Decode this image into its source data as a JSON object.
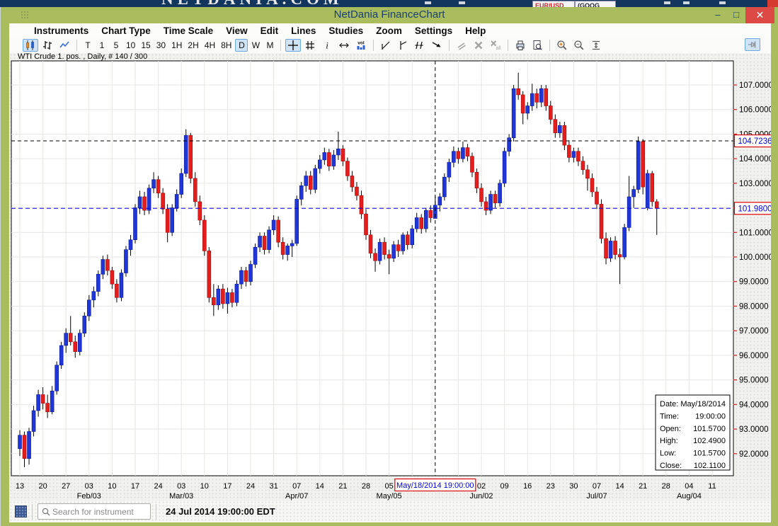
{
  "background_page": {
    "logo_text": "NETDANIA.COM",
    "ticker_left": "EUR/USD",
    "ticker_right": "(GOOG"
  },
  "window": {
    "title": "NetDania FinanceChart",
    "minimize_glyph": "–",
    "maximize_glyph": "□",
    "close_glyph": "✕"
  },
  "menu": {
    "items": [
      "Instruments",
      "Chart Type",
      "Time Scale",
      "View",
      "Edit",
      "Lines",
      "Studies",
      "Zoom",
      "Settings",
      "Help"
    ]
  },
  "toolbar": {
    "groups": [
      {
        "items": [
          {
            "name": "candlestick-chart-button",
            "icon": "candlestick",
            "selected": true
          },
          {
            "name": "ohlc-bars-button",
            "icon": "ohlc"
          },
          {
            "name": "line-chart-button",
            "icon": "linechart"
          }
        ]
      },
      {
        "items": [
          {
            "name": "timescale-tick",
            "label": "T"
          },
          {
            "name": "timescale-1min",
            "label": "1"
          },
          {
            "name": "timescale-5min",
            "label": "5"
          },
          {
            "name": "timescale-10min",
            "label": "10"
          },
          {
            "name": "timescale-15min",
            "label": "15"
          },
          {
            "name": "timescale-30min",
            "label": "30"
          },
          {
            "name": "timescale-1h",
            "label": "1H"
          },
          {
            "name": "timescale-2h",
            "label": "2H"
          },
          {
            "name": "timescale-4h",
            "label": "4H"
          },
          {
            "name": "timescale-8h",
            "label": "8H"
          },
          {
            "name": "timescale-daily",
            "label": "D",
            "selected": true
          },
          {
            "name": "timescale-weekly",
            "label": "W"
          },
          {
            "name": "timescale-monthly",
            "label": "M"
          }
        ]
      },
      {
        "items": [
          {
            "name": "crosshair-button",
            "icon": "crosshair",
            "selected": true
          },
          {
            "name": "grid-button",
            "icon": "grid"
          },
          {
            "name": "info-button",
            "icon": "info"
          },
          {
            "name": "horizontal-scale-button",
            "icon": "resizeh"
          },
          {
            "name": "volume-button",
            "icon": "volume"
          }
        ]
      },
      {
        "items": [
          {
            "name": "trend-line-button",
            "icon": "trendline"
          },
          {
            "name": "vertical-line-button",
            "icon": "trendvline"
          },
          {
            "name": "parallel-lines-button",
            "icon": "trendparallel"
          },
          {
            "name": "arrow-tool-button",
            "icon": "trendarrow"
          }
        ]
      },
      {
        "items": [
          {
            "name": "move-parallel-button",
            "icon": "parallelgray",
            "disabled": true
          },
          {
            "name": "delete-line-button",
            "icon": "deletex",
            "disabled": true
          },
          {
            "name": "delete-all-lines-button",
            "icon": "deleteall",
            "disabled": true
          }
        ]
      },
      {
        "items": [
          {
            "name": "print-button",
            "icon": "print"
          },
          {
            "name": "print-preview-button",
            "icon": "preview"
          }
        ]
      },
      {
        "items": [
          {
            "name": "zoom-in-button",
            "icon": "zoomin"
          },
          {
            "name": "zoom-out-button",
            "icon": "zoomout"
          },
          {
            "name": "fit-vertical-button",
            "icon": "fitv"
          }
        ]
      }
    ],
    "pin": {
      "name": "pin-panel-button",
      "icon": "pin",
      "selected": true
    }
  },
  "chart": {
    "label": "WTI Crude 1. pos. , Daily, # 140 / 300",
    "colors": {
      "up": "#2136d9",
      "up_border": "#0a1a8c",
      "down": "#e51d1d",
      "down_border": "#9b0e0e",
      "wick": "#000000",
      "grid": "#e6e6e3",
      "plot_border": "#000000",
      "crosshair": "#000000",
      "last_price_line": "#0000dd",
      "axis_tick": "#cc2222",
      "axis_text": "#000000",
      "marker_text": "#0000cc",
      "marker_border": "#dd0000",
      "marker_bg": "#ffffff"
    }
  },
  "chart_data": {
    "type": "candlestick",
    "instrument": "WTI Crude 1. pos.",
    "interval": "Daily",
    "bars_info": "# 140 / 300",
    "y_ticks": [
      92,
      93,
      94,
      95,
      96,
      97,
      98,
      99,
      100,
      101,
      102,
      103,
      104,
      105,
      106,
      107
    ],
    "y_tick_format": [
      "92.0000",
      "93.0000",
      "94.0000",
      "95.0000",
      "96.0000",
      "97.0000",
      "98.0000",
      "99.0000",
      "100.0000",
      "101.0000",
      "102.0000",
      "103.0000",
      "104.0000",
      "105.0000",
      "106.0000",
      "107.0000"
    ],
    "y_range": [
      91.1,
      107.98
    ],
    "bar_slots": 155,
    "week_labels": [
      {
        "bar": 0,
        "label": "13"
      },
      {
        "bar": 5,
        "label": "20"
      },
      {
        "bar": 10,
        "label": "27"
      },
      {
        "bar": 15,
        "label": "03"
      },
      {
        "bar": 20,
        "label": "10"
      },
      {
        "bar": 25,
        "label": "17"
      },
      {
        "bar": 30,
        "label": "24"
      },
      {
        "bar": 35,
        "label": "03"
      },
      {
        "bar": 40,
        "label": "10"
      },
      {
        "bar": 45,
        "label": "17"
      },
      {
        "bar": 50,
        "label": "24"
      },
      {
        "bar": 55,
        "label": "31"
      },
      {
        "bar": 60,
        "label": "07"
      },
      {
        "bar": 65,
        "label": "14"
      },
      {
        "bar": 70,
        "label": "21"
      },
      {
        "bar": 75,
        "label": "28"
      },
      {
        "bar": 80,
        "label": "05"
      },
      {
        "bar": 100,
        "label": "02"
      },
      {
        "bar": 105,
        "label": "09"
      },
      {
        "bar": 110,
        "label": "16"
      },
      {
        "bar": 115,
        "label": "23"
      },
      {
        "bar": 120,
        "label": "30"
      },
      {
        "bar": 125,
        "label": "07"
      },
      {
        "bar": 130,
        "label": "14"
      },
      {
        "bar": 135,
        "label": "21"
      },
      {
        "bar": 140,
        "label": "28"
      },
      {
        "bar": 145,
        "label": "04"
      },
      {
        "bar": 150,
        "label": "11"
      }
    ],
    "month_labels": [
      {
        "bar": 15,
        "label": "Feb/03"
      },
      {
        "bar": 35,
        "label": "Mar/03"
      },
      {
        "bar": 60,
        "label": "Apr/07"
      },
      {
        "bar": 80,
        "label": "May/05"
      },
      {
        "bar": 100,
        "label": "Jun/02"
      },
      {
        "bar": 125,
        "label": "Jul/07"
      },
      {
        "bar": 145,
        "label": "Aug/04"
      }
    ],
    "crosshair": {
      "bar": 90,
      "price": 104.7236,
      "price_label": "104.7236",
      "time_label": "May/18/2014 19:00:00"
    },
    "last_price": 101.98,
    "last_price_label": "101.9800",
    "tooltip": {
      "rows": [
        {
          "key": "Date:",
          "value": "May/18/2014"
        },
        {
          "key": "Time:",
          "value": "19:00:00"
        },
        {
          "key": "Open:",
          "value": "101.5700"
        },
        {
          "key": "High:",
          "value": "102.4900"
        },
        {
          "key": "Low:",
          "value": "101.5700"
        },
        {
          "key": "Close:",
          "value": "102.1100"
        }
      ]
    },
    "candles": [
      [
        92.2,
        92.95,
        91.9,
        92.75
      ],
      [
        92.75,
        92.9,
        91.45,
        91.8
      ],
      [
        91.8,
        93.05,
        91.55,
        92.9
      ],
      [
        92.9,
        93.95,
        92.7,
        93.75
      ],
      [
        93.75,
        94.6,
        93.5,
        94.4
      ],
      [
        94.4,
        94.7,
        93.8,
        94.05
      ],
      [
        94.05,
        94.4,
        93.45,
        93.7
      ],
      [
        93.7,
        94.75,
        93.6,
        94.55
      ],
      [
        94.55,
        95.75,
        94.4,
        95.6
      ],
      [
        95.6,
        96.55,
        95.45,
        96.4
      ],
      [
        96.4,
        97.1,
        96.1,
        96.9
      ],
      [
        96.9,
        97.6,
        96.4,
        96.55
      ],
      [
        96.55,
        96.8,
        95.9,
        96.15
      ],
      [
        96.15,
        97.05,
        96.0,
        96.9
      ],
      [
        96.9,
        97.75,
        96.75,
        97.6
      ],
      [
        97.6,
        98.45,
        97.4,
        98.25
      ],
      [
        98.25,
        98.8,
        97.95,
        98.6
      ],
      [
        98.6,
        99.45,
        98.4,
        99.3
      ],
      [
        99.3,
        100.05,
        99.1,
        99.9
      ],
      [
        99.9,
        100.1,
        99.25,
        99.45
      ],
      [
        99.45,
        99.6,
        98.7,
        98.9
      ],
      [
        98.9,
        99.1,
        98.15,
        98.35
      ],
      [
        98.35,
        99.5,
        98.2,
        99.35
      ],
      [
        99.35,
        100.45,
        99.2,
        100.3
      ],
      [
        100.3,
        100.9,
        100.05,
        100.7
      ],
      [
        100.7,
        102.15,
        100.55,
        102.0
      ],
      [
        102.0,
        102.7,
        101.75,
        102.45
      ],
      [
        102.45,
        102.65,
        101.7,
        101.9
      ],
      [
        101.9,
        102.95,
        101.75,
        102.8
      ],
      [
        102.8,
        103.45,
        102.6,
        103.15
      ],
      [
        103.15,
        103.3,
        102.4,
        102.6
      ],
      [
        102.6,
        102.8,
        101.75,
        101.95
      ],
      [
        101.95,
        102.15,
        100.6,
        101.0
      ],
      [
        101.0,
        102.15,
        100.85,
        102.0
      ],
      [
        102.0,
        102.75,
        101.85,
        102.55
      ],
      [
        102.55,
        103.6,
        102.4,
        103.4
      ],
      [
        103.4,
        105.2,
        103.25,
        104.95
      ],
      [
        104.95,
        105.05,
        103.0,
        103.2
      ],
      [
        103.2,
        103.45,
        102.05,
        102.25
      ],
      [
        102.25,
        102.5,
        101.3,
        101.5
      ],
      [
        101.5,
        101.7,
        100.05,
        100.25
      ],
      [
        100.25,
        100.4,
        98.15,
        98.35
      ],
      [
        98.35,
        98.9,
        97.6,
        98.05
      ],
      [
        98.05,
        98.85,
        97.85,
        98.7
      ],
      [
        98.7,
        98.9,
        97.9,
        98.1
      ],
      [
        98.1,
        98.75,
        97.7,
        98.55
      ],
      [
        98.55,
        98.7,
        97.95,
        98.15
      ],
      [
        98.15,
        99.05,
        98.0,
        98.9
      ],
      [
        98.9,
        99.6,
        98.7,
        99.45
      ],
      [
        99.45,
        99.6,
        98.8,
        99.0
      ],
      [
        99.0,
        99.85,
        98.85,
        99.7
      ],
      [
        99.7,
        100.55,
        99.55,
        100.4
      ],
      [
        100.4,
        101.0,
        100.2,
        100.85
      ],
      [
        100.85,
        101.0,
        100.1,
        100.3
      ],
      [
        100.3,
        101.25,
        100.15,
        101.1
      ],
      [
        101.1,
        101.7,
        100.9,
        101.5
      ],
      [
        101.5,
        101.65,
        100.4,
        100.6
      ],
      [
        100.6,
        100.8,
        99.9,
        100.1
      ],
      [
        100.1,
        100.55,
        99.85,
        100.45
      ],
      [
        100.45,
        100.7,
        100.0,
        100.55
      ],
      [
        100.55,
        102.5,
        100.45,
        102.35
      ],
      [
        102.35,
        103.05,
        102.1,
        102.9
      ],
      [
        102.9,
        103.5,
        102.65,
        103.3
      ],
      [
        103.3,
        103.5,
        102.55,
        102.75
      ],
      [
        102.75,
        103.75,
        102.6,
        103.6
      ],
      [
        103.6,
        104.15,
        103.4,
        103.95
      ],
      [
        103.95,
        104.45,
        103.75,
        104.25
      ],
      [
        104.25,
        104.4,
        103.5,
        103.7
      ],
      [
        103.7,
        104.35,
        103.55,
        104.15
      ],
      [
        104.15,
        105.1,
        103.95,
        104.4
      ],
      [
        104.4,
        104.55,
        103.7,
        103.9
      ],
      [
        103.9,
        104.05,
        103.1,
        103.3
      ],
      [
        103.3,
        103.5,
        102.65,
        102.85
      ],
      [
        102.85,
        103.05,
        102.3,
        102.5
      ],
      [
        102.5,
        102.7,
        101.55,
        101.75
      ],
      [
        101.75,
        101.95,
        100.7,
        100.9
      ],
      [
        100.9,
        101.1,
        99.95,
        100.15
      ],
      [
        100.15,
        100.35,
        99.4,
        99.85
      ],
      [
        99.85,
        100.75,
        99.7,
        100.6
      ],
      [
        100.6,
        100.8,
        99.9,
        100.1
      ],
      [
        100.1,
        100.3,
        99.3,
        99.95
      ],
      [
        99.95,
        100.65,
        99.8,
        100.5
      ],
      [
        100.5,
        100.7,
        100.0,
        100.25
      ],
      [
        100.25,
        101.0,
        100.1,
        100.9
      ],
      [
        100.9,
        101.05,
        100.3,
        100.5
      ],
      [
        100.5,
        101.3,
        100.35,
        101.15
      ],
      [
        101.15,
        101.8,
        101.0,
        101.6
      ],
      [
        101.6,
        101.75,
        100.95,
        101.15
      ],
      [
        101.15,
        102.0,
        101.0,
        101.9
      ],
      [
        101.9,
        102.1,
        101.4,
        101.6
      ],
      [
        101.57,
        102.49,
        101.57,
        102.11
      ],
      [
        102.11,
        102.6,
        101.85,
        102.45
      ],
      [
        102.45,
        103.4,
        102.3,
        103.25
      ],
      [
        103.25,
        104.0,
        103.05,
        103.85
      ],
      [
        103.85,
        104.5,
        103.65,
        104.3
      ],
      [
        104.3,
        104.45,
        103.8,
        104.0
      ],
      [
        104.0,
        104.7,
        103.85,
        104.45
      ],
      [
        104.45,
        104.6,
        103.9,
        104.1
      ],
      [
        104.1,
        104.25,
        103.25,
        103.45
      ],
      [
        103.45,
        103.6,
        102.6,
        102.8
      ],
      [
        102.8,
        103.0,
        102.05,
        102.25
      ],
      [
        102.25,
        102.45,
        101.7,
        101.9
      ],
      [
        101.9,
        102.7,
        101.75,
        102.55
      ],
      [
        102.55,
        102.7,
        102.0,
        102.2
      ],
      [
        102.2,
        103.15,
        102.05,
        103.0
      ],
      [
        103.0,
        104.45,
        102.85,
        104.3
      ],
      [
        104.3,
        105.0,
        104.1,
        104.85
      ],
      [
        104.85,
        107.0,
        104.7,
        106.85
      ],
      [
        106.85,
        107.5,
        106.4,
        106.6
      ],
      [
        106.6,
        106.75,
        105.4,
        105.85
      ],
      [
        105.85,
        106.3,
        105.6,
        106.15
      ],
      [
        106.15,
        107.05,
        105.95,
        106.65
      ],
      [
        106.65,
        106.85,
        106.05,
        106.3
      ],
      [
        106.3,
        107.0,
        106.1,
        106.85
      ],
      [
        106.85,
        107.0,
        105.95,
        106.15
      ],
      [
        106.15,
        106.35,
        105.4,
        105.6
      ],
      [
        105.6,
        105.8,
        104.85,
        105.05
      ],
      [
        105.05,
        105.5,
        104.85,
        105.35
      ],
      [
        105.35,
        105.5,
        104.35,
        104.55
      ],
      [
        104.55,
        104.75,
        103.85,
        104.05
      ],
      [
        104.05,
        104.45,
        103.85,
        104.3
      ],
      [
        104.3,
        104.45,
        103.7,
        103.9
      ],
      [
        103.9,
        104.1,
        103.35,
        103.55
      ],
      [
        103.55,
        103.75,
        102.7,
        103.2
      ],
      [
        103.2,
        103.4,
        102.45,
        102.65
      ],
      [
        102.65,
        102.85,
        101.95,
        102.15
      ],
      [
        102.15,
        102.35,
        100.55,
        100.75
      ],
      [
        100.75,
        101.0,
        99.7,
        99.95
      ],
      [
        99.95,
        100.8,
        99.8,
        100.65
      ],
      [
        100.65,
        100.85,
        99.9,
        100.1
      ],
      [
        100.1,
        100.35,
        98.9,
        100.0
      ],
      [
        100.0,
        101.35,
        99.9,
        101.2
      ],
      [
        101.2,
        103.3,
        101.05,
        102.45
      ],
      [
        102.45,
        102.9,
        102.0,
        102.75
      ],
      [
        102.75,
        104.9,
        102.6,
        104.7
      ],
      [
        104.7,
        104.8,
        102.55,
        102.85
      ],
      [
        102.0,
        103.55,
        101.9,
        103.4
      ],
      [
        103.4,
        103.5,
        102.05,
        102.25
      ],
      [
        102.25,
        102.35,
        100.9,
        101.98
      ]
    ]
  },
  "status_bar": {
    "search_placeholder": "Search for instrument",
    "time": "24 Jul 2014 19:00:00 EDT"
  }
}
